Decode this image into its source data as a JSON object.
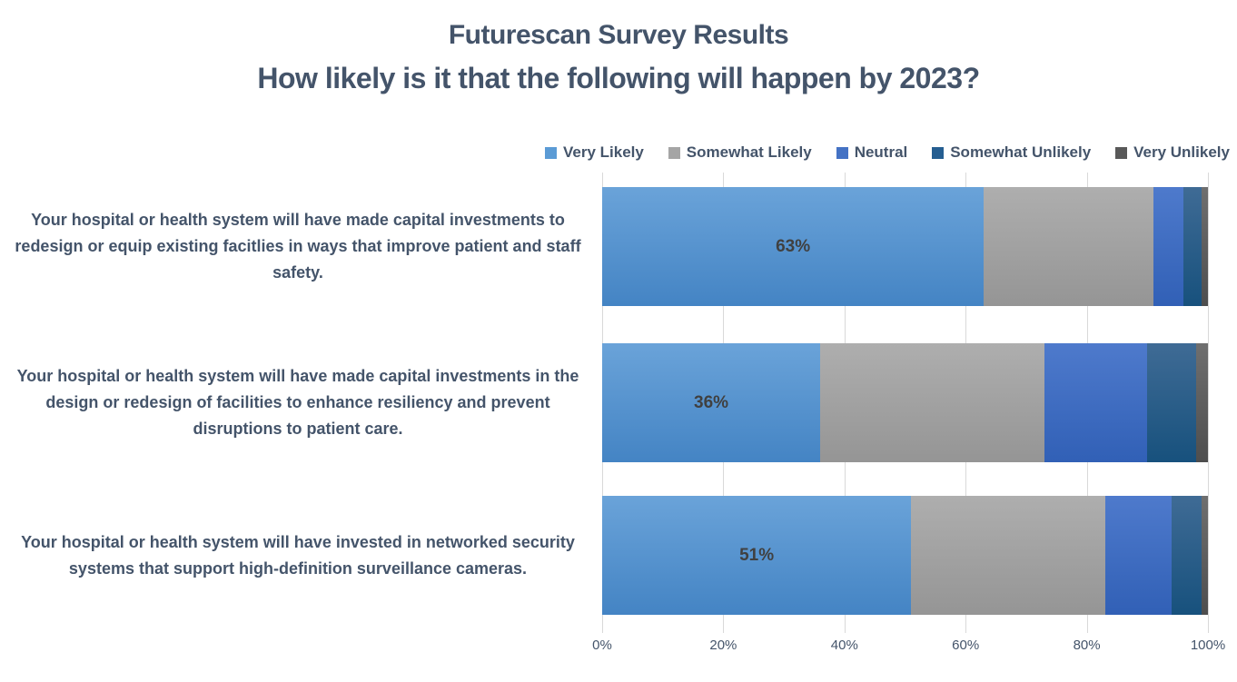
{
  "title": "Futurescan Survey Results",
  "subtitle": "How likely is it that the following will happen by 2023?",
  "chart_data": {
    "type": "bar",
    "orientation": "horizontal-stacked",
    "title": "Futurescan Survey Results",
    "subtitle": "How likely is it that the following will happen by 2023?",
    "legend_position": "top",
    "legend": [
      "Very Likely",
      "Somewhat Likely",
      "Neutral",
      "Somewhat Unlikely",
      "Very Unlikely"
    ],
    "series_colors": [
      "#5B9BD5",
      "#A5A5A5",
      "#4472C4",
      "#255E91",
      "#595959"
    ],
    "categories": [
      "Your hospital or health system will have made capital investments to redesign or equip existing facitlies in ways that improve patient and staff safety.",
      "Your hospital or health system will have made capital investments in the design or redesign of facilities to enhance resiliency and prevent disruptions to patient care.",
      "Your hospital or health system will have invested in networked security systems that support high-definition surveillance cameras."
    ],
    "series": [
      {
        "name": "Very Likely",
        "values": [
          63,
          36,
          51
        ]
      },
      {
        "name": "Somewhat Likely",
        "values": [
          28,
          37,
          32
        ]
      },
      {
        "name": "Neutral",
        "values": [
          5,
          17,
          11
        ]
      },
      {
        "name": "Somewhat Unlikely",
        "values": [
          3,
          8,
          5
        ]
      },
      {
        "name": "Very Unlikely",
        "values": [
          1,
          2,
          1
        ]
      }
    ],
    "bar_labels": [
      "63%",
      "36%",
      "51%"
    ],
    "x_ticks": [
      "0%",
      "20%",
      "40%",
      "60%",
      "80%",
      "100%"
    ],
    "xlim": [
      0,
      100
    ],
    "grid": true
  },
  "colors": {
    "title_text": "#44546A",
    "axis_text": "#44546A",
    "bar_label_text": "#404040",
    "gridline": "#D9D9D9",
    "background": "#FFFFFF"
  }
}
